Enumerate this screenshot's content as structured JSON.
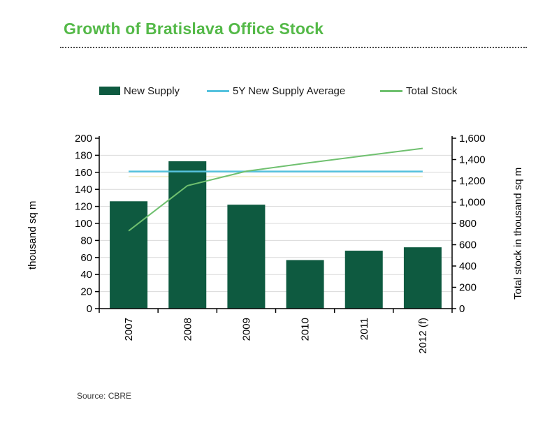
{
  "title": "Growth of Bratislava Office Stock",
  "source": "Source: CBRE",
  "colors": {
    "title_green": "#54b948",
    "bar_green": "#0e5a40",
    "avg_blue": "#56c2de",
    "stock_green": "#6fc06f",
    "grid_gray": "#d9d9d9",
    "axis_black": "#000000",
    "faint_guide": "#f3efd0"
  },
  "legend": [
    {
      "label": "New Supply",
      "type": "bar"
    },
    {
      "label": "5Y New Supply Average",
      "type": "line"
    },
    {
      "label": "Total Stock",
      "type": "line"
    }
  ],
  "chart_data": {
    "type": "bar",
    "title": "Growth of Bratislava Office Stock",
    "categories": [
      "2007",
      "2008",
      "2009",
      "2010",
      "2011",
      "2012 (f)"
    ],
    "series": [
      {
        "name": "New Supply",
        "type": "bar",
        "axis": "left",
        "values": [
          126,
          173,
          122,
          57,
          68,
          72
        ]
      },
      {
        "name": "5Y New Supply Average",
        "type": "line",
        "axis": "left",
        "values": [
          161,
          161,
          161,
          161,
          161,
          161
        ]
      },
      {
        "name": "Total Stock",
        "type": "line",
        "axis": "right",
        "values": [
          730,
          1155,
          1290,
          1365,
          1435,
          1505
        ]
      }
    ],
    "left_axis": {
      "label": "thousand sq m",
      "min": 0,
      "max": 200,
      "step": 20
    },
    "right_axis": {
      "label": "Total stock in thousand sq m",
      "min": 0,
      "max": 1600,
      "step": 200
    },
    "grid": true,
    "legend_position": "top",
    "faint_guide_value": 155
  }
}
